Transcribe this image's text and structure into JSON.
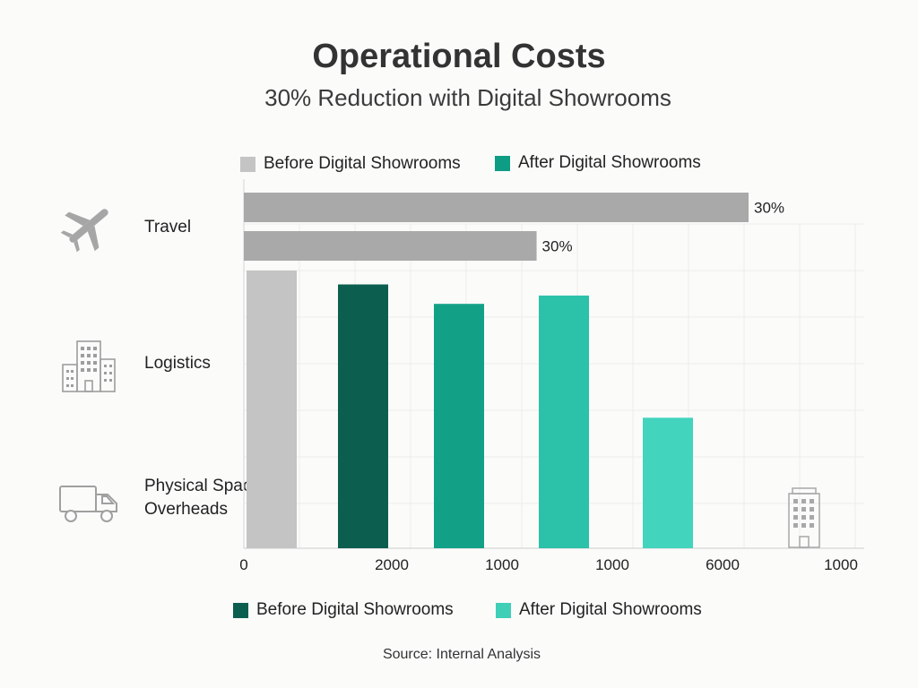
{
  "title": "Operational Costs",
  "subtitle": "30% Reduction with Digital Showrooms",
  "legend_top": [
    {
      "label": "Before Digital Showrooms",
      "color": "#c4c4c4"
    },
    {
      "label": "After Digital Showrooms",
      "color": "#0f9c84"
    }
  ],
  "legend_bottom": [
    {
      "label": "Before Digital Showrooms",
      "color": "#0c5f4f"
    },
    {
      "label": "After Digital Showrooms",
      "color": "#3ecfb6"
    }
  ],
  "categories": [
    {
      "label": "Travel",
      "icon": "airplane-icon"
    },
    {
      "label": "Logistics",
      "icon": "office-building-icon"
    },
    {
      "label": "Physical Space Overheads",
      "icon": "delivery-truck-icon"
    }
  ],
  "source": "Source: Internal Analysis",
  "chart_data": {
    "type": "bar",
    "title": "Operational Costs",
    "subtitle": "30% Reduction with Digital Showrooms",
    "horizontal_bars": [
      {
        "series": "Before Digital Showrooms",
        "category": "Travel",
        "label": "30%",
        "color": "#a9a9a9",
        "relative_length": 1.0
      },
      {
        "series": "After Digital Showrooms",
        "category": "Travel",
        "label": "30%",
        "color": "#a9a9a9",
        "relative_length": 0.58
      }
    ],
    "vertical_bars": [
      {
        "color": "#c4c4c4",
        "value": 1.0
      },
      {
        "color": "#0c5f4f",
        "value": 0.95
      },
      {
        "color": "#12a187",
        "value": 0.88
      },
      {
        "color": "#2cc1a9",
        "value": 0.91
      },
      {
        "color": "#42d4bd",
        "value": 0.47
      }
    ],
    "x_tick_labels": [
      "0",
      "2000",
      "1000",
      "1000",
      "6000",
      "1000"
    ],
    "grid": true
  }
}
